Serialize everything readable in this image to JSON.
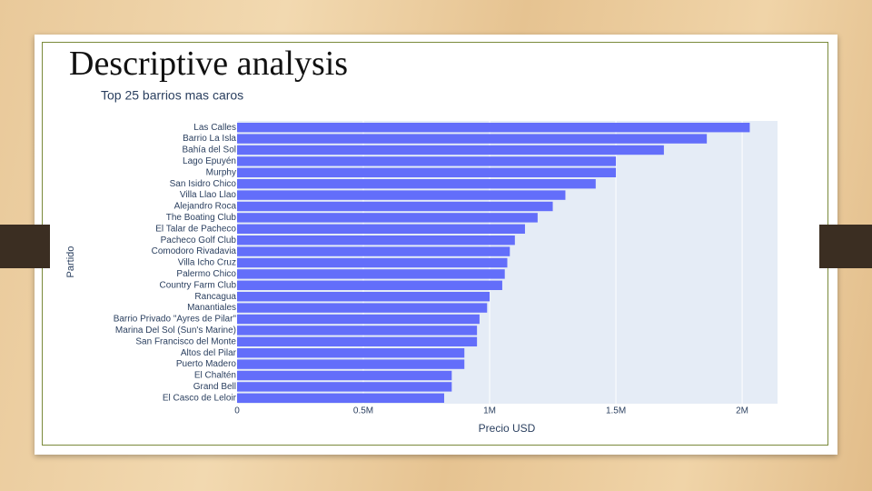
{
  "slide_title": "Descriptive analysis",
  "chart_data": {
    "type": "barh",
    "title": "Top 25 barrios mas caros",
    "x_label": "Precio USD",
    "y_label": "Partido",
    "categories": [
      "Las Calles",
      "Barrio La Isla",
      "Bahía del Sol",
      "Lago Epuyén",
      "Murphy",
      "San Isidro Chico",
      "Villa Llao Llao",
      "Alejandro Roca",
      "The Boating Club",
      "El Talar de Pacheco",
      "Pacheco Golf Club",
      "Comodoro Rivadavia",
      "Villa Icho Cruz",
      "Palermo Chico",
      "Country Farm Club",
      "Rancagua",
      "Manantiales",
      "Barrio Privado \"Ayres de Pilar\"",
      "Marina Del Sol (Sun's Marine)",
      "San Francisco del Monte",
      "Altos del Pilar",
      "Puerto Madero",
      "El Chaltén",
      "Grand Bell",
      "El Casco de Leloir"
    ],
    "values": [
      2030000,
      1860000,
      1690000,
      1500000,
      1500000,
      1420000,
      1300000,
      1250000,
      1190000,
      1140000,
      1100000,
      1080000,
      1070000,
      1060000,
      1050000,
      1000000,
      990000,
      960000,
      950000,
      950000,
      900000,
      900000,
      850000,
      850000,
      820000
    ],
    "color": "#636efa",
    "xlim": [
      0,
      2140000
    ],
    "xticks": [
      0,
      {
        "value": 500000,
        "label": "0.5M"
      },
      {
        "value": 1000000,
        "label": "1M"
      },
      {
        "value": 1500000,
        "label": "1.5M"
      },
      {
        "value": 2000000,
        "label": "2M"
      }
    ],
    "grid": true
  }
}
